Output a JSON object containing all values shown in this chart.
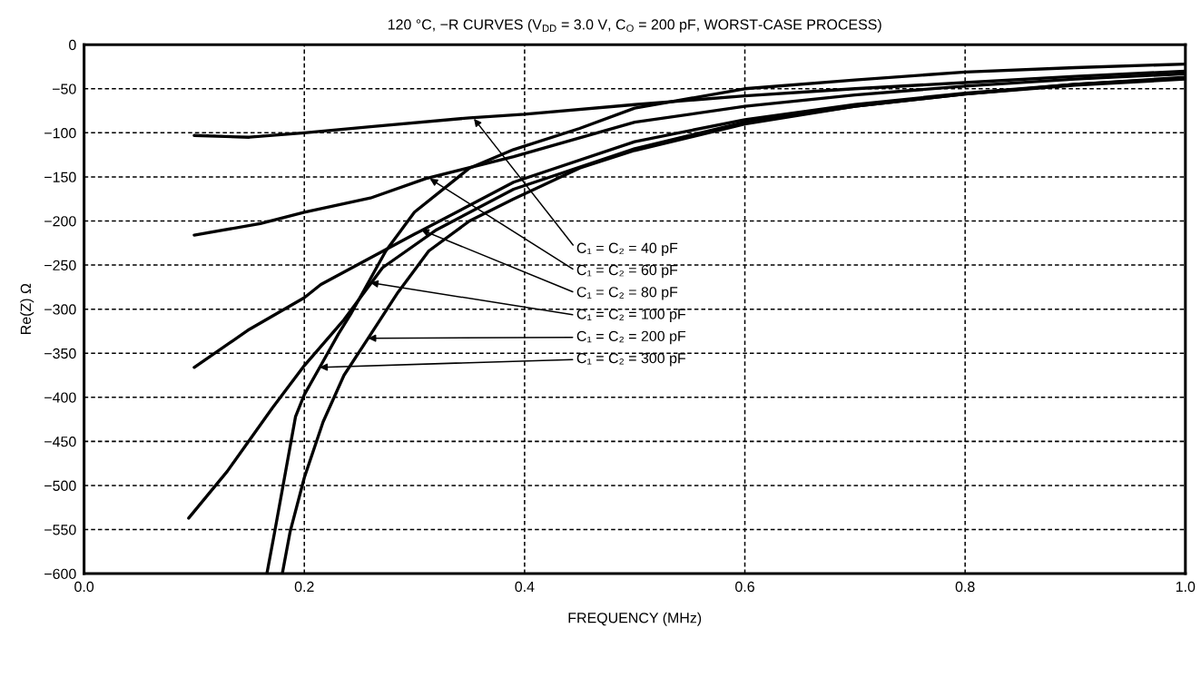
{
  "chart_data": {
    "type": "line",
    "title": "120 °C, −R CURVES (V$_{DD}$ = 3.0 V, C$_{O}$ = 200 pF, WORST-CASE PROCESS)",
    "xlabel": "FREQUENCY (MHz)",
    "ylabel": "Re(Z) Ω",
    "xlim": [
      0.0,
      1.0
    ],
    "ylim": [
      -600,
      0
    ],
    "xticks": [
      {
        "value": 0.0,
        "label": "0.0"
      },
      {
        "value": 0.2,
        "label": "0.2"
      },
      {
        "value": 0.4,
        "label": "0.4"
      },
      {
        "value": 0.6,
        "label": "0.6"
      },
      {
        "value": 0.8,
        "label": "0.8"
      },
      {
        "value": 1.0,
        "label": "1.0"
      }
    ],
    "yticks": [
      {
        "value": 0,
        "label": "0"
      },
      {
        "value": -50,
        "label": "−50"
      },
      {
        "value": -100,
        "label": "−100"
      },
      {
        "value": -150,
        "label": "−150"
      },
      {
        "value": -200,
        "label": "−200"
      },
      {
        "value": -250,
        "label": "−250"
      },
      {
        "value": -300,
        "label": "−300"
      },
      {
        "value": -350,
        "label": "−350"
      },
      {
        "value": -400,
        "label": "−400"
      },
      {
        "value": -450,
        "label": "−450"
      },
      {
        "value": -500,
        "label": "−500"
      },
      {
        "value": -550,
        "label": "−550"
      },
      {
        "value": -600,
        "label": "−600"
      }
    ],
    "grid": true,
    "line_style": "solid",
    "marker": "none",
    "series": [
      {
        "color": "#000000",
        "x": [
          0.1,
          0.15,
          0.2,
          0.26,
          0.35,
          0.4,
          0.5,
          0.6,
          0.7,
          0.8,
          0.9,
          1.0
        ],
        "values": [
          -103,
          -105,
          -100,
          -93,
          -83,
          -79,
          -68,
          -58,
          -50,
          -43,
          -36,
          -30
        ]
      },
      {
        "color": "#000000",
        "x": [
          0.1,
          0.16,
          0.2,
          0.26,
          0.31,
          0.39,
          0.5,
          0.6,
          0.7,
          0.8,
          0.9,
          1.0
        ],
        "values": [
          -216,
          -203,
          -190,
          -174,
          -152,
          -127,
          -88,
          -70,
          -57,
          -47,
          -39,
          -33
        ]
      },
      {
        "color": "#000000",
        "x": [
          0.1,
          0.15,
          0.2,
          0.215,
          0.3,
          0.39,
          0.5,
          0.6,
          0.7,
          0.8,
          0.9,
          1.0
        ],
        "values": [
          -366,
          -323,
          -287,
          -272,
          -215,
          -156,
          -110,
          -85,
          -68,
          -55,
          -45,
          -38
        ]
      },
      {
        "color": "#000000",
        "x": [
          0.095,
          0.13,
          0.171,
          0.2,
          0.236,
          0.271,
          0.32,
          0.39,
          0.5,
          0.6,
          0.7,
          0.8,
          0.9,
          1.0
        ],
        "values": [
          -537,
          -484,
          -412,
          -364,
          -312,
          -253,
          -210,
          -164,
          -118,
          -88,
          -70,
          -56,
          -46,
          -39
        ]
      },
      {
        "color": "#000000",
        "x": [
          0.18,
          0.187,
          0.2,
          0.217,
          0.236,
          0.258,
          0.285,
          0.313,
          0.35,
          0.39,
          0.45,
          0.5,
          0.6,
          0.7,
          0.8,
          0.9,
          1.0
        ],
        "values": [
          -600,
          -553,
          -491,
          -428,
          -375,
          -333,
          -281,
          -234,
          -200,
          -175,
          -140,
          -120,
          -90,
          -70,
          -56,
          -45,
          -37
        ]
      },
      {
        "color": "#000000",
        "x": [
          0.166,
          0.173,
          0.192,
          0.2,
          0.214,
          0.231,
          0.242,
          0.274,
          0.3,
          0.35,
          0.39,
          0.45,
          0.5,
          0.6,
          0.7,
          0.8,
          0.9,
          1.0
        ],
        "values": [
          -600,
          -553,
          -422,
          -397,
          -366,
          -328,
          -306,
          -234,
          -190,
          -140,
          -119,
          -95,
          -72,
          -50,
          -40,
          -31,
          -26,
          -22
        ]
      }
    ],
    "annotations": [
      {
        "text": "C₁ = C₂ = 40 pF",
        "x": 0.354,
        "y": -84
      },
      {
        "text": "C₁ = C₂ = 60 pF",
        "x": 0.314,
        "y": -152
      },
      {
        "text": "C₁ = C₂ = 80 pF",
        "x": 0.306,
        "y": -210
      },
      {
        "text": "C₁ = C₂ = 100 pF",
        "x": 0.26,
        "y": -270
      },
      {
        "text": "C₁ = C₂ = 200 pF",
        "x": 0.258,
        "y": -333
      },
      {
        "text": "C₁ = C₂ = 300 pF",
        "x": 0.214,
        "y": -366
      }
    ]
  }
}
